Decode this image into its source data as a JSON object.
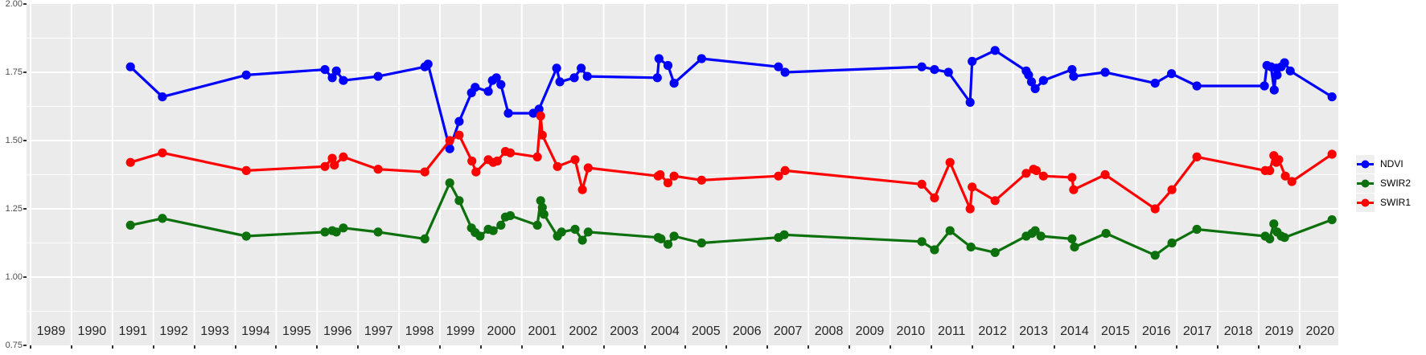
{
  "page": {
    "type": "time-series-chart",
    "title": ""
  },
  "colors": {
    "background": "#FFFFFF",
    "panel_bg": "#EBEBEB",
    "grid": "#FFFFFF",
    "axis_text": "#4D4D4D",
    "year_text": "#262626",
    "tick": "#333333",
    "legend_key_bg": "#EFEFEF",
    "legend_text": "#000000",
    "ndvi": "#0000FF",
    "swir2": "#0C700C",
    "swir1": "#FF0000"
  },
  "y_axis": {
    "tick_labels": [
      "2.00",
      "1.75",
      "1.50",
      "1.25",
      "1.00",
      "0.75"
    ],
    "tick_values": [
      2.0,
      1.75,
      1.5,
      1.25,
      1.0,
      0.75
    ]
  },
  "x_axis": {
    "year_labels": [
      "1989",
      "1990",
      "1991",
      "1992",
      "1993",
      "1994",
      "1995",
      "1996",
      "1997",
      "1998",
      "1999",
      "2000",
      "2001",
      "2002",
      "2003",
      "2004",
      "2005",
      "2006",
      "2007",
      "2008",
      "2009",
      "2010",
      "2011",
      "2012",
      "2013",
      "2014",
      "2015",
      "2016",
      "2017",
      "2018",
      "2019",
      "2020"
    ]
  },
  "legend": {
    "items": [
      {
        "label": "NDVI",
        "color": "#0000FF"
      },
      {
        "label": "SWIR2",
        "color": "#0C700C"
      },
      {
        "label": "SWIR1",
        "color": "#FF0000"
      }
    ]
  },
  "chart_data": {
    "type": "line",
    "title": "",
    "xlabel": "",
    "ylabel": "",
    "xlim": [
      1989,
      2021
    ],
    "ylim": [
      0.75,
      2.0
    ],
    "y_major_step": 0.25,
    "y_minor_step": 0.125,
    "x_gridlines_at": "integer year boundaries, labels centered within year bands",
    "grid": true,
    "legend_position": "right-center",
    "series": [
      {
        "name": "NDVI",
        "color": "#0000FF",
        "points": [
          [
            1991.44,
            1.77
          ],
          [
            1992.22,
            1.66
          ],
          [
            1994.27,
            1.74
          ],
          [
            1996.19,
            1.76
          ],
          [
            1996.37,
            1.73
          ],
          [
            1996.47,
            1.755
          ],
          [
            1996.64,
            1.72
          ],
          [
            1997.49,
            1.735
          ],
          [
            1998.63,
            1.77
          ],
          [
            1998.71,
            1.78
          ],
          [
            1999.24,
            1.47
          ],
          [
            1999.47,
            1.57
          ],
          [
            1999.77,
            1.675
          ],
          [
            1999.86,
            1.695
          ],
          [
            2000.18,
            1.68
          ],
          [
            2000.28,
            1.72
          ],
          [
            2000.38,
            1.73
          ],
          [
            2000.49,
            1.705
          ],
          [
            2000.67,
            1.6
          ],
          [
            2001.28,
            1.6
          ],
          [
            2001.42,
            1.615
          ],
          [
            2001.85,
            1.765
          ],
          [
            2001.93,
            1.715
          ],
          [
            2002.28,
            1.73
          ],
          [
            2002.45,
            1.765
          ],
          [
            2002.6,
            1.735
          ],
          [
            2004.31,
            1.73
          ],
          [
            2004.35,
            1.8
          ],
          [
            2004.57,
            1.775
          ],
          [
            2004.72,
            1.71
          ],
          [
            2005.39,
            1.8
          ],
          [
            2007.27,
            1.77
          ],
          [
            2007.43,
            1.75
          ],
          [
            2010.77,
            1.77
          ],
          [
            2011.08,
            1.76
          ],
          [
            2011.42,
            1.75
          ],
          [
            2011.95,
            1.64
          ],
          [
            2012.0,
            1.79
          ],
          [
            2012.56,
            1.83
          ],
          [
            2013.32,
            1.755
          ],
          [
            2013.38,
            1.74
          ],
          [
            2013.45,
            1.715
          ],
          [
            2013.54,
            1.69
          ],
          [
            2013.74,
            1.72
          ],
          [
            2014.44,
            1.76
          ],
          [
            2014.48,
            1.735
          ],
          [
            2015.25,
            1.75
          ],
          [
            2016.47,
            1.71
          ],
          [
            2016.87,
            1.745
          ],
          [
            2017.49,
            1.7
          ],
          [
            2019.14,
            1.7
          ],
          [
            2019.2,
            1.775
          ],
          [
            2019.3,
            1.77
          ],
          [
            2019.38,
            1.685
          ],
          [
            2019.43,
            1.765
          ],
          [
            2019.45,
            1.74
          ],
          [
            2019.55,
            1.77
          ],
          [
            2019.63,
            1.785
          ],
          [
            2019.77,
            1.755
          ],
          [
            2020.79,
            1.66
          ]
        ]
      },
      {
        "name": "SWIR2",
        "color": "#0C700C",
        "points": [
          [
            1991.44,
            1.19
          ],
          [
            1992.22,
            1.215
          ],
          [
            1994.27,
            1.15
          ],
          [
            1996.19,
            1.165
          ],
          [
            1996.37,
            1.17
          ],
          [
            1996.47,
            1.165
          ],
          [
            1996.64,
            1.18
          ],
          [
            1997.49,
            1.165
          ],
          [
            1998.63,
            1.14
          ],
          [
            1999.24,
            1.345
          ],
          [
            1999.47,
            1.28
          ],
          [
            1999.77,
            1.18
          ],
          [
            1999.86,
            1.163
          ],
          [
            1999.98,
            1.15
          ],
          [
            2000.18,
            1.175
          ],
          [
            2000.3,
            1.17
          ],
          [
            2000.49,
            1.19
          ],
          [
            2000.6,
            1.22
          ],
          [
            2000.72,
            1.225
          ],
          [
            2001.38,
            1.19
          ],
          [
            2001.46,
            1.28
          ],
          [
            2001.5,
            1.255
          ],
          [
            2001.54,
            1.23
          ],
          [
            2001.87,
            1.15
          ],
          [
            2001.97,
            1.165
          ],
          [
            2002.3,
            1.175
          ],
          [
            2002.48,
            1.135
          ],
          [
            2002.62,
            1.165
          ],
          [
            2004.33,
            1.145
          ],
          [
            2004.4,
            1.14
          ],
          [
            2004.57,
            1.12
          ],
          [
            2004.72,
            1.15
          ],
          [
            2005.39,
            1.125
          ],
          [
            2007.27,
            1.145
          ],
          [
            2007.41,
            1.155
          ],
          [
            2010.77,
            1.13
          ],
          [
            2011.08,
            1.1
          ],
          [
            2011.46,
            1.17
          ],
          [
            2011.97,
            1.11
          ],
          [
            2012.56,
            1.09
          ],
          [
            2013.32,
            1.15
          ],
          [
            2013.46,
            1.16
          ],
          [
            2013.54,
            1.17
          ],
          [
            2013.68,
            1.15
          ],
          [
            2014.44,
            1.14
          ],
          [
            2014.5,
            1.11
          ],
          [
            2015.27,
            1.16
          ],
          [
            2016.47,
            1.08
          ],
          [
            2016.88,
            1.125
          ],
          [
            2017.49,
            1.175
          ],
          [
            2019.16,
            1.15
          ],
          [
            2019.27,
            1.14
          ],
          [
            2019.37,
            1.195
          ],
          [
            2019.45,
            1.165
          ],
          [
            2019.55,
            1.15
          ],
          [
            2019.63,
            1.145
          ],
          [
            2020.79,
            1.21
          ]
        ]
      },
      {
        "name": "SWIR1",
        "color": "#FF0000",
        "points": [
          [
            1991.44,
            1.42
          ],
          [
            1992.22,
            1.455
          ],
          [
            1994.27,
            1.39
          ],
          [
            1996.19,
            1.405
          ],
          [
            1996.37,
            1.435
          ],
          [
            1996.42,
            1.41
          ],
          [
            1996.64,
            1.44
          ],
          [
            1997.49,
            1.395
          ],
          [
            1998.63,
            1.385
          ],
          [
            1999.24,
            1.5
          ],
          [
            1999.47,
            1.52
          ],
          [
            1999.78,
            1.425
          ],
          [
            1999.88,
            1.385
          ],
          [
            2000.18,
            1.43
          ],
          [
            2000.3,
            1.42
          ],
          [
            2000.4,
            1.425
          ],
          [
            2000.6,
            1.46
          ],
          [
            2000.72,
            1.455
          ],
          [
            2001.38,
            1.44
          ],
          [
            2001.46,
            1.59
          ],
          [
            2001.5,
            1.52
          ],
          [
            2001.87,
            1.405
          ],
          [
            2002.3,
            1.43
          ],
          [
            2002.48,
            1.32
          ],
          [
            2002.62,
            1.4
          ],
          [
            2004.33,
            1.37
          ],
          [
            2004.38,
            1.375
          ],
          [
            2004.57,
            1.345
          ],
          [
            2004.72,
            1.37
          ],
          [
            2005.39,
            1.355
          ],
          [
            2007.27,
            1.37
          ],
          [
            2007.43,
            1.39
          ],
          [
            2010.77,
            1.34
          ],
          [
            2011.08,
            1.29
          ],
          [
            2011.46,
            1.42
          ],
          [
            2011.95,
            1.25
          ],
          [
            2012.0,
            1.33
          ],
          [
            2012.56,
            1.28
          ],
          [
            2013.32,
            1.38
          ],
          [
            2013.5,
            1.395
          ],
          [
            2013.57,
            1.39
          ],
          [
            2013.74,
            1.37
          ],
          [
            2014.44,
            1.365
          ],
          [
            2014.48,
            1.32
          ],
          [
            2015.25,
            1.375
          ],
          [
            2016.47,
            1.25
          ],
          [
            2016.88,
            1.32
          ],
          [
            2017.49,
            1.44
          ],
          [
            2019.16,
            1.39
          ],
          [
            2019.27,
            1.39
          ],
          [
            2019.37,
            1.445
          ],
          [
            2019.43,
            1.42
          ],
          [
            2019.49,
            1.43
          ],
          [
            2019.65,
            1.37
          ],
          [
            2019.81,
            1.35
          ],
          [
            2020.79,
            1.45
          ]
        ]
      }
    ]
  }
}
